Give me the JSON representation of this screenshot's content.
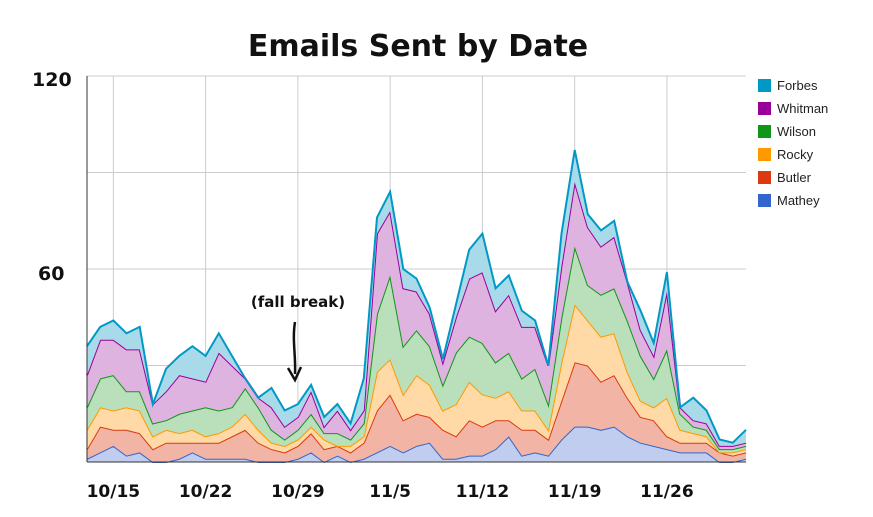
{
  "chart_data": {
    "type": "area",
    "stacked": true,
    "title": "Emails Sent by Date",
    "y_ticks": [
      "120",
      "60"
    ],
    "ylim": [
      0,
      120
    ],
    "grid": true,
    "legend_position": "right",
    "x_tick_labels": [
      "10/15",
      "10/22",
      "10/29",
      "11/5",
      "11/12",
      "11/19",
      "11/26"
    ],
    "x_tick_index": [
      2,
      9,
      16,
      23,
      30,
      37,
      44
    ],
    "annotation": "(fall break)",
    "annotation_index": 16,
    "series": [
      {
        "name": "Mathey",
        "color": "#3366cc",
        "fill": "#c1cdee",
        "values": [
          1,
          3,
          5,
          2,
          3,
          0,
          0,
          1,
          3,
          1,
          1,
          1,
          1,
          0,
          0,
          0,
          1,
          3,
          0,
          2,
          0,
          1,
          3,
          5,
          3,
          5,
          6,
          1,
          1,
          2,
          2,
          4,
          8,
          2,
          3,
          2,
          7,
          11,
          11,
          10,
          11,
          8,
          6,
          5,
          4,
          3,
          3,
          3,
          0,
          0,
          1
        ]
      },
      {
        "name": "Butler",
        "color": "#dc3912",
        "fill": "#f2b4a5",
        "values": [
          3,
          8,
          5,
          8,
          6,
          4,
          6,
          5,
          3,
          5,
          5,
          7,
          9,
          6,
          4,
          3,
          4,
          6,
          4,
          3,
          3,
          5,
          13,
          16,
          10,
          10,
          8,
          9,
          7,
          11,
          9,
          9,
          5,
          8,
          7,
          5,
          12,
          20,
          19,
          15,
          16,
          12,
          8,
          8,
          4,
          3,
          3,
          3,
          3,
          2,
          2
        ]
      },
      {
        "name": "Rocky",
        "color": "#ff9900",
        "fill": "#ffdaa6",
        "values": [
          6,
          6,
          6,
          7,
          7,
          4,
          4,
          3,
          4,
          2,
          3,
          3,
          5,
          4,
          2,
          2,
          2,
          2,
          3,
          0,
          2,
          2,
          12,
          11,
          8,
          12,
          10,
          6,
          10,
          12,
          10,
          7,
          9,
          6,
          6,
          3,
          12,
          18,
          14,
          14,
          13,
          8,
          5,
          4,
          12,
          4,
          3,
          2,
          0,
          1,
          1
        ]
      },
      {
        "name": "Wilson",
        "color": "#109618",
        "fill": "#b9e0ba",
        "values": [
          7,
          9,
          11,
          5,
          6,
          4,
          3,
          6,
          6,
          9,
          7,
          6,
          8,
          7,
          4,
          2,
          3,
          4,
          2,
          4,
          2,
          4,
          18,
          26,
          15,
          14,
          12,
          8,
          16,
          14,
          16,
          11,
          12,
          10,
          13,
          8,
          14,
          18,
          11,
          13,
          14,
          16,
          14,
          9,
          15,
          5,
          2,
          2,
          1,
          1,
          1
        ]
      },
      {
        "name": "Whitman",
        "color": "#990099",
        "fill": "#dfb3df",
        "values": [
          10,
          12,
          11,
          13,
          13,
          6,
          9,
          12,
          10,
          8,
          18,
          13,
          3,
          3,
          7,
          4,
          4,
          7,
          2,
          7,
          3,
          4,
          25,
          20,
          18,
          12,
          10,
          7,
          11,
          18,
          22,
          16,
          18,
          16,
          13,
          12,
          16,
          20,
          18,
          15,
          16,
          12,
          8,
          7,
          18,
          2,
          2,
          2,
          1,
          1,
          1
        ]
      },
      {
        "name": "Forbes",
        "color": "#0099c6",
        "fill": "#a9daea",
        "values": [
          9,
          4,
          6,
          5,
          7,
          0,
          7,
          6,
          10,
          8,
          6,
          3,
          0,
          0,
          6,
          5,
          4,
          2,
          3,
          2,
          2,
          10,
          5,
          6,
          6,
          4,
          2,
          1,
          4,
          9,
          12,
          7,
          6,
          5,
          2,
          0,
          10,
          10,
          4,
          5,
          5,
          0,
          6,
          4,
          6,
          0,
          7,
          4,
          2,
          1,
          4
        ]
      }
    ]
  }
}
